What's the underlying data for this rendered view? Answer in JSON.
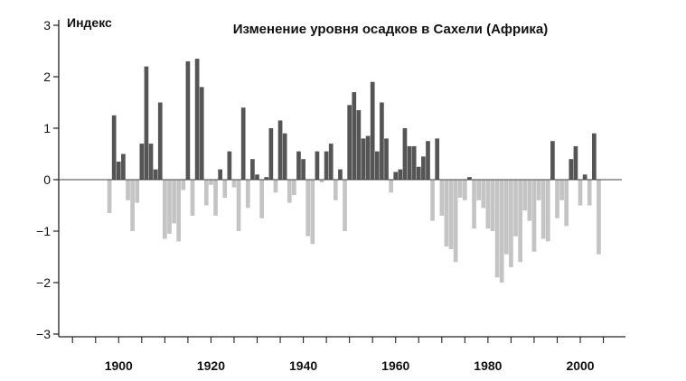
{
  "chart_data": {
    "type": "bar",
    "title": "Изменение уровня осадков в Сахели (Африка)",
    "ylabel": "Индекс",
    "xlabel": "",
    "ylim": [
      -3,
      3
    ],
    "xlim": [
      1888,
      2009
    ],
    "yticks": [
      3,
      2,
      1,
      0,
      -1,
      -2,
      -3
    ],
    "ytick_labels": [
      "3",
      "2",
      "1",
      "0",
      "−1",
      "−2",
      "−3"
    ],
    "xticks": [
      1900,
      1920,
      1940,
      1960,
      1980,
      2000
    ],
    "xtick_labels": [
      "1900",
      "1920",
      "1940",
      "1960",
      "1980",
      "2000"
    ],
    "grid": false,
    "colors": {
      "positive": "#555555",
      "negative": "#c4c4c4",
      "axis": "#222222"
    },
    "x": [
      1898,
      1899,
      1900,
      1901,
      1902,
      1903,
      1904,
      1905,
      1906,
      1907,
      1908,
      1909,
      1910,
      1911,
      1912,
      1913,
      1914,
      1915,
      1916,
      1917,
      1918,
      1919,
      1920,
      1921,
      1922,
      1923,
      1924,
      1925,
      1926,
      1927,
      1928,
      1929,
      1930,
      1931,
      1932,
      1933,
      1934,
      1935,
      1936,
      1937,
      1938,
      1939,
      1940,
      1941,
      1942,
      1943,
      1944,
      1945,
      1946,
      1947,
      1948,
      1949,
      1950,
      1951,
      1952,
      1953,
      1954,
      1955,
      1956,
      1957,
      1958,
      1959,
      1960,
      1961,
      1962,
      1963,
      1964,
      1965,
      1966,
      1967,
      1968,
      1969,
      1970,
      1971,
      1972,
      1973,
      1974,
      1975,
      1976,
      1977,
      1978,
      1979,
      1980,
      1981,
      1982,
      1983,
      1984,
      1985,
      1986,
      1987,
      1988,
      1989,
      1990,
      1991,
      1992,
      1993,
      1994,
      1995,
      1996,
      1997,
      1998,
      1999,
      2000,
      2001,
      2002,
      2003,
      2004
    ],
    "values": [
      -0.65,
      1.25,
      0.35,
      0.5,
      -0.4,
      -1.0,
      -0.45,
      0.7,
      2.2,
      0.7,
      0.2,
      1.5,
      -1.15,
      -1.05,
      -0.85,
      -1.2,
      -0.2,
      2.3,
      -0.7,
      2.35,
      1.8,
      -0.5,
      -0.1,
      -0.7,
      0.2,
      -0.35,
      0.55,
      -0.15,
      -1.0,
      1.4,
      -0.55,
      0.4,
      0.1,
      -0.75,
      0.05,
      1.0,
      -0.25,
      1.15,
      0.9,
      -0.45,
      -0.3,
      0.55,
      0.4,
      -1.1,
      -1.25,
      0.55,
      -0.05,
      0.55,
      0.7,
      -0.4,
      0.2,
      -1.0,
      1.45,
      1.7,
      1.35,
      0.8,
      0.85,
      1.9,
      0.55,
      1.5,
      0.8,
      -0.25,
      0.15,
      0.2,
      1.0,
      0.65,
      0.65,
      0.25,
      0.45,
      0.75,
      -0.8,
      0.8,
      -0.7,
      -1.3,
      -1.35,
      -1.6,
      -0.35,
      -0.4,
      0.05,
      -0.95,
      -0.4,
      -0.55,
      -0.95,
      -1.0,
      -1.9,
      -2.0,
      -1.45,
      -1.7,
      -1.1,
      -1.6,
      -0.6,
      -0.8,
      -1.4,
      -0.4,
      -1.15,
      -1.2,
      0.75,
      -0.75,
      -0.4,
      -0.9,
      0.4,
      0.65,
      -0.5,
      0.1,
      -0.5,
      0.9,
      -1.45
    ]
  }
}
